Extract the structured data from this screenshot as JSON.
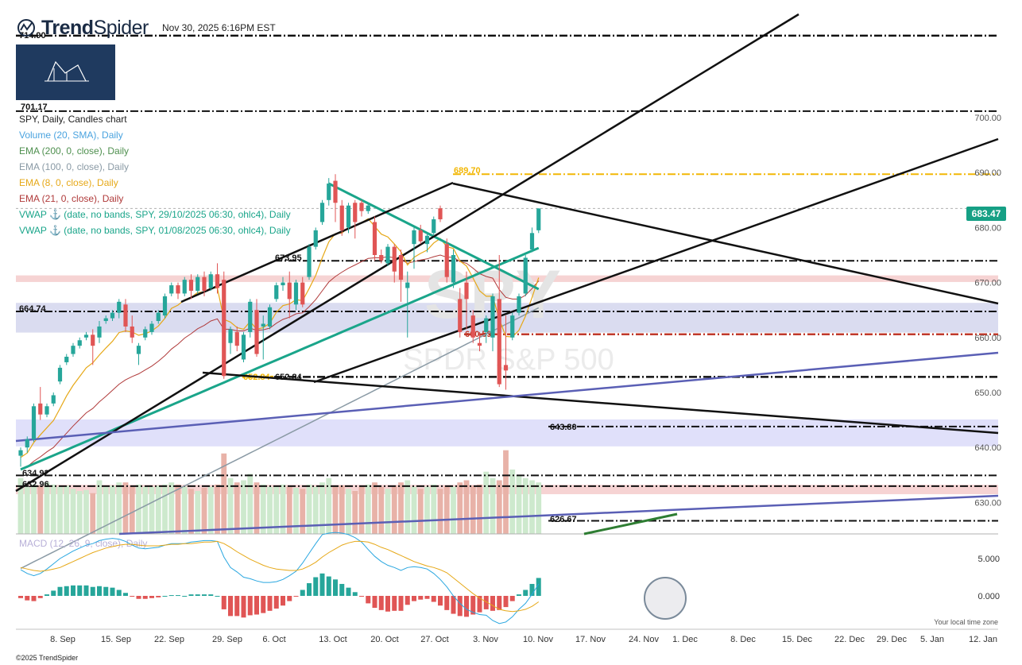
{
  "header": {
    "brand": "TrendSpider",
    "brand_bold": "Trend",
    "brand_light": "Spider",
    "timestamp": "Nov 30, 2025 6:16PM EST",
    "copyright": "©2025 TrendSpider",
    "tz_note": "Your local time zone"
  },
  "indicators": [
    {
      "label": "SPY, Daily, Candles chart",
      "color": "#222222"
    },
    {
      "label": "Volume (20, SMA), Daily",
      "color": "#4aa3df"
    },
    {
      "label": "EMA (200, 0, close), Daily",
      "color": "#4e8f4e"
    },
    {
      "label": "EMA (100, 0, close), Daily",
      "color": "#8a9aa5"
    },
    {
      "label": "EMA (8, 0, close), Daily",
      "color": "#e6a817"
    },
    {
      "label": "EMA (21, 0, close), Daily",
      "color": "#b03a3a"
    },
    {
      "label": "VWAP ⚓ (date, no bands, SPY, 29/10/2025 06:30, ohlc4), Daily",
      "color": "#1aa58a"
    },
    {
      "label": "VWAP ⚓ (date, no bands, SPY, 01/08/2025 06:30, ohlc4), Daily",
      "color": "#1aa58a"
    }
  ],
  "macd_label": "MACD (12, 26, 9, close), Daily",
  "watermark": {
    "symbol": "SPY",
    "name": "SPDR S&P 500"
  },
  "last_price": "683.47",
  "colors": {
    "up": "#26a69a",
    "down": "#e05555",
    "ema8": "#e6a817",
    "ema21": "#b03a3a",
    "ema100": "#8a9aa5",
    "vwap": "#1aa58a",
    "trendline": "#111111",
    "blueline": "#5a5fb5",
    "level": "#111111",
    "level_red": "#c0392b",
    "level_gold": "#f2b705",
    "accent": "#16a085"
  },
  "chart_data": {
    "type": "candlestick",
    "x_labels": [
      "8. Sep",
      "15. Sep",
      "22. Sep",
      "29. Sep",
      "6. Oct",
      "13. Oct",
      "20. Oct",
      "27. Oct",
      "3. Nov",
      "10. Nov",
      "17. Nov",
      "24. Nov",
      "1. Dec",
      "8. Dec",
      "15. Dec",
      "22. Dec",
      "29. Dec",
      "5. Jan",
      "12. Jan"
    ],
    "y_ticks": [
      "700.00",
      "690.00",
      "680.00",
      "670.00",
      "660.00",
      "650.00",
      "640.00",
      "630.00"
    ],
    "y_tick_values": [
      700,
      690,
      680,
      670,
      660,
      650,
      640,
      630
    ],
    "macd_ticks": [
      "5.000",
      "0.000"
    ],
    "level_labels": [
      {
        "text": "714.90",
        "price": 714.9,
        "color": "#111111"
      },
      {
        "text": "701.17",
        "price": 701.17,
        "color": "#111111"
      },
      {
        "text": "689.70",
        "price": 689.7,
        "color": "#f2b705"
      },
      {
        "text": "673.95",
        "price": 673.95,
        "color": "#111111"
      },
      {
        "text": "664.74",
        "price": 664.74,
        "color": "#111111"
      },
      {
        "text": "660.59",
        "price": 660.59,
        "color": "#c0392b"
      },
      {
        "text": "652.84",
        "price": 652.84,
        "color": "#f2b705"
      },
      {
        "text": "652.84",
        "price": 652.84,
        "color": "#111111"
      },
      {
        "text": "643.80",
        "price": 643.8,
        "color": "#111111"
      },
      {
        "text": "634.92",
        "price": 634.92,
        "color": "#111111"
      },
      {
        "text": "632.96",
        "price": 632.96,
        "color": "#111111"
      },
      {
        "text": "626.67",
        "price": 626.67,
        "color": "#111111"
      }
    ],
    "candles": [
      {
        "o": 638.5,
        "h": 640,
        "c": 639.5,
        "l": 636.5
      },
      {
        "o": 640,
        "h": 642,
        "c": 641.5,
        "l": 639
      },
      {
        "o": 641.5,
        "h": 648,
        "c": 647.5,
        "l": 641
      },
      {
        "o": 648,
        "h": 651,
        "c": 646,
        "l": 645
      },
      {
        "o": 646,
        "h": 648,
        "c": 647.5,
        "l": 645.5
      },
      {
        "o": 648,
        "h": 650,
        "c": 649.5,
        "l": 647.5
      },
      {
        "o": 652,
        "h": 655,
        "c": 654.5,
        "l": 651.5
      },
      {
        "o": 655.5,
        "h": 657,
        "c": 656.5,
        "l": 655
      },
      {
        "o": 657,
        "h": 659,
        "c": 658.5,
        "l": 656.5
      },
      {
        "o": 658.5,
        "h": 660,
        "c": 659.5,
        "l": 658
      },
      {
        "o": 660,
        "h": 661,
        "c": 660.5,
        "l": 659.5
      },
      {
        "o": 660.5,
        "h": 661.5,
        "c": 658.5,
        "l": 655
      },
      {
        "o": 660,
        "h": 663,
        "c": 662,
        "l": 659
      },
      {
        "o": 663,
        "h": 664,
        "c": 663.5,
        "l": 662.5
      },
      {
        "o": 663.5,
        "h": 665,
        "c": 664.5,
        "l": 663
      },
      {
        "o": 664.5,
        "h": 667,
        "c": 666.5,
        "l": 663.5
      },
      {
        "o": 666,
        "h": 667,
        "c": 662,
        "l": 661
      },
      {
        "o": 662,
        "h": 664,
        "c": 660,
        "l": 659
      },
      {
        "o": 657,
        "h": 659,
        "c": 658.5,
        "l": 655
      },
      {
        "o": 660,
        "h": 662,
        "c": 661.5,
        "l": 659.5
      },
      {
        "o": 661,
        "h": 663,
        "c": 662.5,
        "l": 660.5
      },
      {
        "o": 663,
        "h": 665,
        "c": 664.5,
        "l": 662.5
      },
      {
        "o": 664,
        "h": 668,
        "c": 667.5,
        "l": 663.5
      },
      {
        "o": 668,
        "h": 670,
        "c": 669.5,
        "l": 667.5
      },
      {
        "o": 669.5,
        "h": 670,
        "c": 668,
        "l": 667
      },
      {
        "o": 668,
        "h": 671,
        "c": 670.5,
        "l": 667.5
      },
      {
        "o": 670.5,
        "h": 671.5,
        "c": 668.5,
        "l": 667
      },
      {
        "o": 668.5,
        "h": 671.5,
        "c": 671,
        "l": 668
      },
      {
        "o": 671,
        "h": 672,
        "c": 668.5,
        "l": 667.5
      },
      {
        "o": 669,
        "h": 672,
        "c": 671.5,
        "l": 668.5
      },
      {
        "o": 671.5,
        "h": 673.5,
        "c": 669,
        "l": 668
      },
      {
        "o": 670.5,
        "h": 672,
        "c": 653,
        "l": 652.5
      },
      {
        "o": 659,
        "h": 662,
        "c": 661.5,
        "l": 657
      },
      {
        "o": 661,
        "h": 662,
        "c": 658.5,
        "l": 657.5
      },
      {
        "o": 656,
        "h": 661,
        "c": 660.5,
        "l": 655.5
      },
      {
        "o": 661,
        "h": 667,
        "c": 666.5,
        "l": 660
      },
      {
        "o": 665,
        "h": 667,
        "c": 657,
        "l": 656.5
      },
      {
        "o": 662,
        "h": 664,
        "c": 662.5,
        "l": 656
      },
      {
        "o": 662,
        "h": 666,
        "c": 665.5,
        "l": 661.5
      },
      {
        "o": 667,
        "h": 670,
        "c": 669.5,
        "l": 666.5
      },
      {
        "o": 669.5,
        "h": 671,
        "c": 670,
        "l": 668.5
      },
      {
        "o": 670,
        "h": 672,
        "c": 667,
        "l": 663.5
      },
      {
        "o": 666,
        "h": 670.5,
        "c": 670,
        "l": 665
      },
      {
        "o": 670,
        "h": 671,
        "c": 666,
        "l": 665.5
      },
      {
        "o": 671,
        "h": 677,
        "c": 676.5,
        "l": 670.5
      },
      {
        "o": 676.5,
        "h": 680,
        "c": 679.5,
        "l": 676
      },
      {
        "o": 681,
        "h": 685,
        "c": 684.5,
        "l": 680.5
      },
      {
        "o": 685,
        "h": 689,
        "c": 688,
        "l": 684
      },
      {
        "o": 688.5,
        "h": 689.7,
        "c": 684.5,
        "l": 681
      },
      {
        "o": 684,
        "h": 685,
        "c": 679.5,
        "l": 678.5
      },
      {
        "o": 680,
        "h": 684.5,
        "c": 684,
        "l": 679
      },
      {
        "o": 684.5,
        "h": 685,
        "c": 681,
        "l": 678
      },
      {
        "o": 684.5,
        "h": 685,
        "c": 683,
        "l": 682
      },
      {
        "o": 683,
        "h": 684.5,
        "c": 684,
        "l": 682.5
      },
      {
        "o": 681,
        "h": 682,
        "c": 675,
        "l": 674
      },
      {
        "o": 675,
        "h": 676,
        "c": 674,
        "l": 673.5
      },
      {
        "o": 673.5,
        "h": 677,
        "c": 676.5,
        "l": 673
      },
      {
        "o": 676.5,
        "h": 677,
        "c": 672,
        "l": 670
      },
      {
        "o": 675,
        "h": 676,
        "c": 670.5,
        "l": 666.5
      },
      {
        "o": 669,
        "h": 672,
        "c": 670,
        "l": 660
      },
      {
        "o": 677,
        "h": 680,
        "c": 679.5,
        "l": 672.5
      },
      {
        "o": 679.5,
        "h": 680.5,
        "c": 677.5,
        "l": 677
      },
      {
        "o": 677,
        "h": 679,
        "c": 678.5,
        "l": 675.5
      },
      {
        "o": 679,
        "h": 682,
        "c": 681.5,
        "l": 678.5
      },
      {
        "o": 683.5,
        "h": 684,
        "c": 681.5,
        "l": 681
      },
      {
        "o": 677,
        "h": 678,
        "c": 671,
        "l": 670
      },
      {
        "o": 670,
        "h": 676,
        "c": 675,
        "l": 669
      },
      {
        "o": 667,
        "h": 669,
        "c": 661,
        "l": 660
      },
      {
        "o": 670,
        "h": 672,
        "c": 667,
        "l": 661.5
      },
      {
        "o": 664,
        "h": 665,
        "c": 660,
        "l": 659
      },
      {
        "o": 659,
        "h": 661,
        "c": 658.5,
        "l": 657.5
      },
      {
        "o": 661,
        "h": 664,
        "c": 663.5,
        "l": 659
      },
      {
        "o": 660,
        "h": 668,
        "c": 667.5,
        "l": 657.5
      },
      {
        "o": 667,
        "h": 675,
        "c": 651.5,
        "l": 651
      },
      {
        "o": 655,
        "h": 664,
        "c": 654,
        "l": 650.5
      },
      {
        "o": 660,
        "h": 664.5,
        "c": 664,
        "l": 659.5
      },
      {
        "o": 664.5,
        "h": 668,
        "c": 667.5,
        "l": 664
      },
      {
        "o": 668,
        "h": 675,
        "c": 674.5,
        "l": 667.5
      },
      {
        "o": 676,
        "h": 680,
        "c": 679,
        "l": 675.5
      },
      {
        "o": 679.5,
        "h": 683.5,
        "c": 683.47,
        "l": 679
      }
    ],
    "volume": [
      52,
      44,
      46,
      45,
      48,
      46,
      44,
      45,
      42,
      40,
      41,
      38,
      50,
      44,
      45,
      48,
      48,
      45,
      46,
      44,
      44,
      45,
      46,
      48,
      46,
      44,
      42,
      40,
      43,
      44,
      46,
      75,
      52,
      48,
      50,
      56,
      48,
      46,
      44,
      44,
      46,
      44,
      43,
      42,
      46,
      44,
      48,
      52,
      44,
      45,
      42,
      40,
      44,
      46,
      48,
      44,
      42,
      45,
      48,
      50,
      44,
      42,
      44,
      46,
      42,
      45,
      44,
      48,
      50,
      45,
      46,
      58,
      52,
      50,
      78,
      60,
      55,
      52,
      50,
      48
    ],
    "ema8": [
      638.2,
      639,
      640.9,
      642.3,
      643.6,
      644.9,
      647.1,
      649.4,
      651.3,
      652.9,
      654.5,
      655.4,
      656.8,
      658.1,
      659.3,
      660.9,
      661.2,
      661,
      660.4,
      660.7,
      661.2,
      662.1,
      663.5,
      665.3,
      665.9,
      666.9,
      667.3,
      668.2,
      668.3,
      669,
      669,
      663.3,
      662.8,
      661.8,
      661.5,
      662.9,
      661.5,
      661.8,
      662.6,
      664.6,
      665.8,
      666.1,
      666.9,
      666.7,
      668.9,
      671.3,
      674.5,
      677.4,
      678.9,
      679,
      680,
      680.3,
      680.9,
      681.6,
      680.2,
      678.8,
      678.3,
      677,
      675.6,
      673.2,
      674.6,
      675.3,
      675.9,
      677.2,
      678,
      676.5,
      676.2,
      673.9,
      673,
      670.8,
      668.5,
      667.5,
      667.5,
      663.3,
      660.2,
      660.1,
      661.3,
      663.9,
      667.3,
      670.9
    ],
    "ema21": [
      636,
      636.5,
      637.5,
      638.3,
      639.2,
      640,
      641.3,
      642.6,
      643.9,
      645.1,
      646.3,
      647.1,
      648.3,
      649.3,
      650.4,
      651.5,
      652.3,
      652.9,
      653.4,
      654.1,
      654.8,
      655.7,
      656.7,
      657.9,
      658.8,
      659.9,
      660.7,
      661.6,
      662.2,
      663,
      663.4,
      661.5,
      661.5,
      661.2,
      661.2,
      661.7,
      661.3,
      661.4,
      661.7,
      662.6,
      663.3,
      663.7,
      664.3,
      664.5,
      665.6,
      666.9,
      668.5,
      670.1,
      671.1,
      671.9,
      672.6,
      673.2,
      673.8,
      674.4,
      674.5,
      674.5,
      674.7,
      674.5,
      674.2,
      673.5,
      673.8,
      674.1,
      674.3,
      674.7,
      675,
      674.6,
      674.6,
      673.8,
      673.5,
      672.6,
      671.6,
      671.1,
      670.8,
      668.7,
      667.3,
      667,
      667,
      667.7,
      668.9,
      670.3
    ],
    "ema100": [
      618,
      618.6,
      619.2,
      619.8,
      620.4,
      621,
      621.6,
      622.2,
      622.8,
      623.4,
      624,
      624.6,
      625.2,
      625.8,
      626.4,
      627,
      627.6,
      628.2,
      628.8,
      629.4,
      630,
      630.6,
      631.2,
      631.8,
      632.4,
      633,
      633.6,
      634.2,
      634.8,
      635.4,
      636,
      636.6,
      637.2,
      637.8,
      638.4,
      639,
      639.6,
      640.2,
      640.8,
      641.4,
      642,
      642.6,
      643.2,
      643.8,
      644.4,
      645,
      645.6,
      646.2,
      646.8,
      647.4,
      648,
      648.6,
      649.2,
      649.8,
      650.4,
      651,
      651.6,
      652.2,
      652.8,
      653.4,
      654,
      654.6,
      655.2,
      655.8,
      656.4,
      657,
      657.6,
      658.2,
      658.8,
      659.4,
      660,
      660.6,
      661.2,
      661.8,
      662.4,
      663,
      663.6,
      664.2,
      664.8,
      665.4
    ],
    "macd": [
      3.5,
      3,
      2.7,
      3,
      3.6,
      4.3,
      5,
      5.5,
      6,
      6.4,
      6.8,
      7,
      7.4,
      7.6,
      7.7,
      7.6,
      7.3,
      6.8,
      6.4,
      6.3,
      6.4,
      6.5,
      6.8,
      7,
      7,
      7,
      7.2,
      7.3,
      7.4,
      7.4,
      7.3,
      5.2,
      3.8,
      3.2,
      2.5,
      2.3,
      2,
      1.8,
      1.8,
      1.9,
      2.2,
      2.7,
      3.3,
      4.4,
      5.7,
      7,
      8.2,
      8.4,
      8.5,
      8.4,
      8.2,
      7.8,
      7.2,
      6.2,
      5.3,
      4.6,
      4.1,
      3.8,
      3.4,
      3.8,
      3.9,
      3.8,
      3.6,
      3,
      2.2,
      1.2,
      0,
      -1,
      -1.8,
      -2.2,
      -2.5,
      -2.6,
      -3.3,
      -3.7,
      -3.5,
      -2.8,
      -1.8,
      -1,
      0.2,
      1.6
    ],
    "signal": [
      3.8,
      3.6,
      3.4,
      3.3,
      3.4,
      3.6,
      3.8,
      4.2,
      4.6,
      5,
      5.4,
      5.8,
      6.1,
      6.4,
      6.6,
      6.8,
      6.9,
      6.9,
      6.8,
      6.7,
      6.7,
      6.7,
      6.8,
      6.9,
      6.9,
      7,
      7,
      7.1,
      7.2,
      7.2,
      7.3,
      7,
      6.5,
      5.9,
      5.4,
      4.9,
      4.5,
      4.1,
      3.8,
      3.6,
      3.5,
      3.4,
      3.4,
      3.6,
      4,
      4.5,
      5.2,
      5.8,
      6.3,
      6.8,
      7.1,
      7.3,
      7.3,
      7.2,
      6.9,
      6.5,
      6.2,
      5.8,
      5.4,
      5,
      4.6,
      4.3,
      4,
      3.8,
      3.5,
      3.1,
      2.4,
      1.7,
      1,
      0.3,
      -0.3,
      -0.8,
      -1.3,
      -1.8,
      -2,
      -2.1,
      -2,
      -1.8,
      -1.4,
      -0.8
    ]
  }
}
